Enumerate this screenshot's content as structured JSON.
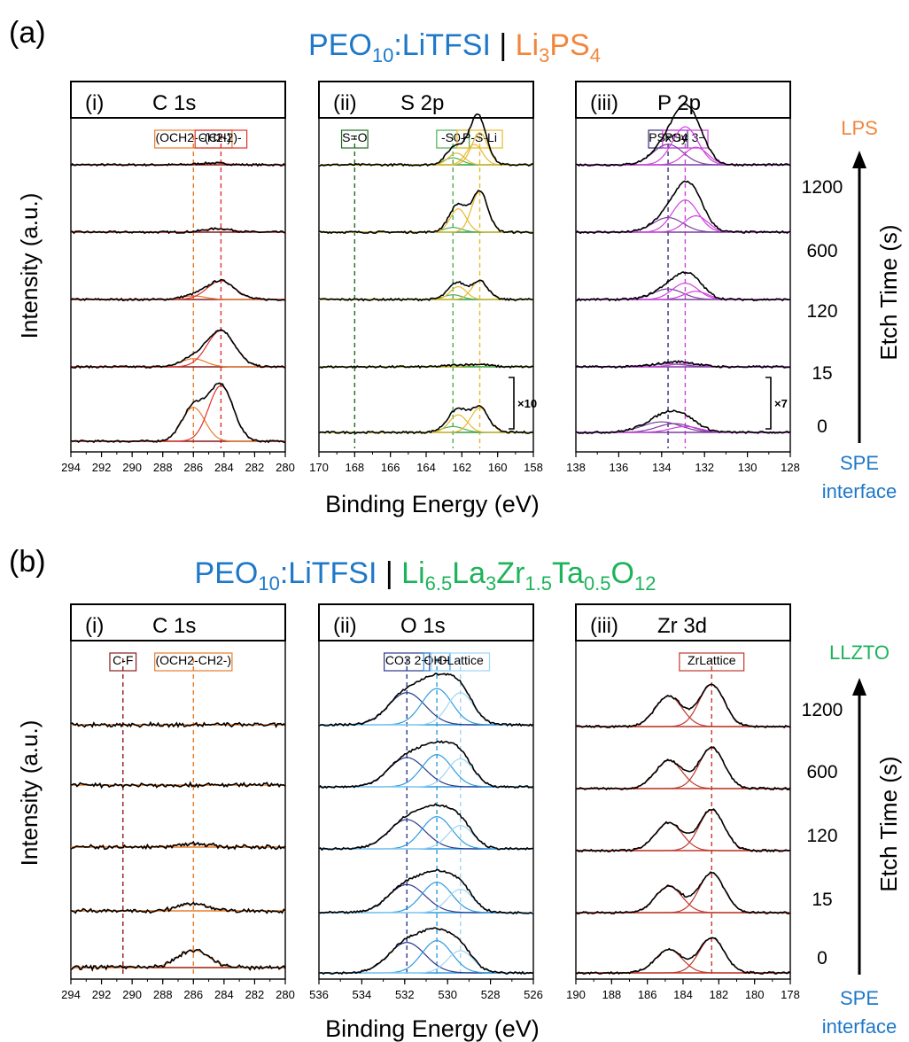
{
  "figure": {
    "panel_a": {
      "letter": "(a)",
      "title_left": "PEO",
      "title_left_sub": "10",
      "title_left_rest": ":LiTFSI",
      "title_sep": " | ",
      "title_right": [
        [
          "Li",
          ""
        ],
        [
          "3",
          "sub"
        ],
        [
          "PS",
          ""
        ],
        [
          "4",
          "sub"
        ]
      ],
      "etch_top": "LPS",
      "etch_bottom_1": "SPE",
      "etch_bottom_2": "interface"
    },
    "panel_b": {
      "letter": "(b)",
      "title_left": "PEO",
      "title_left_sub": "10",
      "title_left_rest": ":LiTFSI",
      "title_sep": " | ",
      "title_right": [
        [
          "Li",
          ""
        ],
        [
          "6.5",
          "sub"
        ],
        [
          "La",
          ""
        ],
        [
          "3",
          "sub"
        ],
        [
          "Zr",
          ""
        ],
        [
          "1.5",
          "sub"
        ],
        [
          "Ta",
          ""
        ],
        [
          "0.5",
          "sub"
        ],
        [
          "O",
          ""
        ],
        [
          "12",
          "sub"
        ]
      ],
      "etch_top": "LLZTO",
      "etch_bottom_1": "SPE",
      "etch_bottom_2": "interface"
    },
    "ylabel": "Intensity (a.u.)",
    "xlabel": "Binding Energy (eV)",
    "etch_axis_label": "Etch Time (s)",
    "etch_times": [
      "1200",
      "600",
      "120",
      "15",
      "0"
    ],
    "colors": {
      "blue_title": "#1E78C8",
      "orange_title": "#F0873C",
      "green_title": "#1DB35A",
      "co_dark_red": "#8B1A1A",
      "c1s_orange": "#E87C2A",
      "c1s_red": "#E0322A",
      "s2p_green": "#4CAF50",
      "s2p_yellow": "#E8B92E",
      "p2p_purple": "#7B3FA0",
      "p2p_magenta": "#D040E0",
      "o1s_navy": "#2C3A8C",
      "o1s_blue": "#2E9BE0",
      "o1s_light": "#9ED6F5",
      "zr_red": "#C0392B"
    }
  },
  "chart_data": [
    {
      "type": "line",
      "panel": "(a)(i)",
      "title": "C 1s",
      "title_roman": "(i)",
      "title_element": "C 1s",
      "xlim": [
        294,
        280
      ],
      "x_ticks": [
        "294",
        "292",
        "290",
        "288",
        "286",
        "284",
        "282",
        "280"
      ],
      "trace_color": "#8B1A1A",
      "annotations": [
        {
          "label": "(OCH2-CH2-)",
          "x": 286.0,
          "color": "#E87C2A"
        },
        {
          "label": "-(CH2)-",
          "x": 284.2,
          "color": "#E0322A"
        }
      ],
      "series": [
        {
          "etch": "1200",
          "peaks": [
            {
              "center": 284.8,
              "height": 0.03,
              "width": 0.9,
              "color": "#E0322A"
            }
          ]
        },
        {
          "etch": "600",
          "peaks": [
            {
              "center": 284.4,
              "height": 0.06,
              "width": 0.9,
              "color": "#E0322A"
            }
          ]
        },
        {
          "etch": "120",
          "peaks": [
            {
              "center": 286.0,
              "height": 0.06,
              "width": 0.8,
              "color": "#E87C2A"
            },
            {
              "center": 284.2,
              "height": 0.32,
              "width": 0.9,
              "color": "#E0322A"
            }
          ]
        },
        {
          "etch": "15",
          "peaks": [
            {
              "center": 286.0,
              "height": 0.14,
              "width": 0.8,
              "color": "#E87C2A"
            },
            {
              "center": 284.2,
              "height": 0.62,
              "width": 0.9,
              "color": "#E0322A"
            }
          ]
        },
        {
          "etch": "0",
          "peaks": [
            {
              "center": 286.0,
              "height": 0.58,
              "width": 0.75,
              "color": "#E87C2A"
            },
            {
              "center": 284.2,
              "height": 0.95,
              "width": 0.8,
              "color": "#E0322A"
            }
          ]
        }
      ]
    },
    {
      "type": "line",
      "panel": "(a)(ii)",
      "title": "S 2p",
      "title_roman": "(ii)",
      "title_element": "S 2p",
      "xlim": [
        170,
        158
      ],
      "x_ticks": [
        "170",
        "168",
        "166",
        "164",
        "162",
        "160",
        "158"
      ],
      "trace_color": "#3A9E3A",
      "annotations": [
        {
          "label": "S=O",
          "x": 168.0,
          "color": "#1E6B1E"
        },
        {
          "label": "-S0-",
          "x": 162.5,
          "color": "#4CAF50"
        },
        {
          "label": "P-S-Li",
          "x": 161.0,
          "color": "#E8B92E"
        }
      ],
      "multiplier": "×10",
      "series": [
        {
          "etch": "1200",
          "peaks": [
            {
              "center": 162.5,
              "height": 0.12,
              "width": 0.5,
              "color": "#4CAF50"
            },
            {
              "center": 161.3,
              "height": 0.35,
              "width": 0.45,
              "color": "#E8B92E"
            },
            {
              "center": 162.3,
              "height": 0.2,
              "width": 0.45,
              "color": "#E8B92E"
            },
            {
              "center": 161.0,
              "height": 0.55,
              "width": 0.45,
              "color": "#E8B92E"
            }
          ]
        },
        {
          "etch": "600",
          "peaks": [
            {
              "center": 162.5,
              "height": 0.08,
              "width": 0.5,
              "color": "#4CAF50"
            },
            {
              "center": 162.2,
              "height": 0.4,
              "width": 0.45,
              "color": "#E8B92E"
            },
            {
              "center": 161.0,
              "height": 0.7,
              "width": 0.45,
              "color": "#E8B92E"
            }
          ]
        },
        {
          "etch": "120",
          "peaks": [
            {
              "center": 162.5,
              "height": 0.08,
              "width": 0.5,
              "color": "#4CAF50"
            },
            {
              "center": 162.2,
              "height": 0.22,
              "width": 0.45,
              "color": "#E8B92E"
            },
            {
              "center": 161.0,
              "height": 0.32,
              "width": 0.45,
              "color": "#E8B92E"
            }
          ]
        },
        {
          "etch": "15",
          "peaks": [
            {
              "center": 162.3,
              "height": 0.03,
              "width": 0.6,
              "color": "#4CAF50"
            },
            {
              "center": 161.0,
              "height": 0.04,
              "width": 0.6,
              "color": "#E8B92E"
            }
          ]
        },
        {
          "etch": "0",
          "peaks": [
            {
              "center": 162.5,
              "height": 0.1,
              "width": 0.6,
              "color": "#4CAF50"
            },
            {
              "center": 162.2,
              "height": 0.3,
              "width": 0.5,
              "color": "#E8B92E"
            },
            {
              "center": 161.0,
              "height": 0.42,
              "width": 0.5,
              "color": "#E8B92E"
            }
          ]
        }
      ]
    },
    {
      "type": "line",
      "panel": "(a)(iii)",
      "title": "P 2p",
      "title_roman": "(iii)",
      "title_element": "P 2p",
      "xlim": [
        138,
        128
      ],
      "x_ticks": [
        "138",
        "136",
        "134",
        "132",
        "130",
        "128"
      ],
      "trace_color": "#7B3FA0",
      "annotations": [
        {
          "label": "PSxOy",
          "x": 133.7,
          "color": "#3A2A7A"
        },
        {
          "label": "PS4 3−",
          "x": 132.9,
          "color": "#D040E0"
        }
      ],
      "multiplier": "×7",
      "series": [
        {
          "etch": "1200",
          "peaks": [
            {
              "center": 133.7,
              "height": 0.35,
              "width": 0.7,
              "color": "#7B3FA0"
            },
            {
              "center": 132.9,
              "height": 0.65,
              "width": 0.6,
              "color": "#D040E0"
            },
            {
              "center": 132.4,
              "height": 0.3,
              "width": 0.55,
              "color": "#D040E0"
            }
          ]
        },
        {
          "etch": "600",
          "peaks": [
            {
              "center": 133.7,
              "height": 0.25,
              "width": 0.7,
              "color": "#7B3FA0"
            },
            {
              "center": 132.9,
              "height": 0.55,
              "width": 0.6,
              "color": "#D040E0"
            },
            {
              "center": 132.4,
              "height": 0.28,
              "width": 0.55,
              "color": "#D040E0"
            }
          ]
        },
        {
          "etch": "120",
          "peaks": [
            {
              "center": 133.7,
              "height": 0.18,
              "width": 0.7,
              "color": "#7B3FA0"
            },
            {
              "center": 132.9,
              "height": 0.28,
              "width": 0.6,
              "color": "#D040E0"
            },
            {
              "center": 132.4,
              "height": 0.14,
              "width": 0.55,
              "color": "#D040E0"
            }
          ]
        },
        {
          "etch": "15",
          "peaks": [
            {
              "center": 133.7,
              "height": 0.05,
              "width": 0.8,
              "color": "#7B3FA0"
            },
            {
              "center": 132.9,
              "height": 0.05,
              "width": 0.7,
              "color": "#D040E0"
            }
          ]
        },
        {
          "etch": "0",
          "peaks": [
            {
              "center": 134.0,
              "height": 0.18,
              "width": 0.9,
              "color": "#7B3FA0"
            },
            {
              "center": 133.4,
              "height": 0.15,
              "width": 0.8,
              "color": "#7B3FA0"
            },
            {
              "center": 132.9,
              "height": 0.1,
              "width": 0.7,
              "color": "#D040E0"
            }
          ]
        }
      ]
    },
    {
      "type": "line",
      "panel": "(b)(i)",
      "title": "C 1s",
      "title_roman": "(i)",
      "title_element": "C 1s",
      "xlim": [
        294,
        280
      ],
      "x_ticks": [
        "294",
        "292",
        "290",
        "288",
        "286",
        "284",
        "282",
        "280"
      ],
      "trace_color": "#E87C2A",
      "annotations": [
        {
          "label": "C-F",
          "x": 290.6,
          "color": "#8B1A1A"
        },
        {
          "label": "(OCH2-CH2-)",
          "x": 286.0,
          "color": "#E87C2A"
        }
      ],
      "series": [
        {
          "etch": "1200",
          "peaks": []
        },
        {
          "etch": "600",
          "peaks": []
        },
        {
          "etch": "120",
          "peaks": [
            {
              "center": 286.0,
              "height": 0.06,
              "width": 1.0,
              "color": "#E87C2A"
            }
          ]
        },
        {
          "etch": "15",
          "peaks": [
            {
              "center": 286.0,
              "height": 0.12,
              "width": 1.0,
              "color": "#E87C2A"
            }
          ]
        },
        {
          "etch": "0",
          "peaks": [
            {
              "center": 290.6,
              "height": 0.02,
              "width": 0.6,
              "color": "#8B1A1A"
            },
            {
              "center": 286.0,
              "height": 0.3,
              "width": 1.0,
              "color": "#E87C2A"
            }
          ]
        }
      ]
    },
    {
      "type": "line",
      "panel": "(b)(ii)",
      "title": "O 1s",
      "title_roman": "(ii)",
      "title_element": "O 1s",
      "xlim": [
        536,
        526
      ],
      "x_ticks": [
        "536",
        "534",
        "532",
        "530",
        "528",
        "526"
      ],
      "trace_color": "#2E9BE0",
      "annotations": [
        {
          "label": "CO3 2−",
          "x": 531.9,
          "color": "#2C3A8C"
        },
        {
          "label": "OH−",
          "x": 530.5,
          "color": "#2E9BE0"
        },
        {
          "label": "OLattice",
          "x": 529.4,
          "color": "#9ED6F5"
        }
      ],
      "series": [
        {
          "etch": "1200",
          "peaks": [
            {
              "center": 531.9,
              "height": 0.55,
              "width": 0.85,
              "color": "#2C3A8C"
            },
            {
              "center": 530.5,
              "height": 0.62,
              "width": 0.7,
              "color": "#2E9BE0"
            },
            {
              "center": 529.4,
              "height": 0.55,
              "width": 0.6,
              "color": "#9ED6F5"
            }
          ]
        },
        {
          "etch": "600",
          "peaks": [
            {
              "center": 531.9,
              "height": 0.5,
              "width": 0.85,
              "color": "#2C3A8C"
            },
            {
              "center": 530.5,
              "height": 0.55,
              "width": 0.7,
              "color": "#2E9BE0"
            },
            {
              "center": 529.4,
              "height": 0.48,
              "width": 0.6,
              "color": "#9ED6F5"
            }
          ]
        },
        {
          "etch": "120",
          "peaks": [
            {
              "center": 531.9,
              "height": 0.5,
              "width": 0.85,
              "color": "#2C3A8C"
            },
            {
              "center": 530.5,
              "height": 0.55,
              "width": 0.7,
              "color": "#2E9BE0"
            },
            {
              "center": 529.4,
              "height": 0.4,
              "width": 0.6,
              "color": "#9ED6F5"
            }
          ]
        },
        {
          "etch": "15",
          "peaks": [
            {
              "center": 531.9,
              "height": 0.48,
              "width": 0.85,
              "color": "#2C3A8C"
            },
            {
              "center": 530.5,
              "height": 0.52,
              "width": 0.7,
              "color": "#2E9BE0"
            },
            {
              "center": 529.4,
              "height": 0.4,
              "width": 0.6,
              "color": "#9ED6F5"
            }
          ]
        },
        {
          "etch": "0",
          "peaks": [
            {
              "center": 531.9,
              "height": 0.52,
              "width": 0.85,
              "color": "#2C3A8C"
            },
            {
              "center": 530.5,
              "height": 0.55,
              "width": 0.7,
              "color": "#2E9BE0"
            },
            {
              "center": 529.4,
              "height": 0.38,
              "width": 0.6,
              "color": "#9ED6F5"
            }
          ]
        }
      ]
    },
    {
      "type": "line",
      "panel": "(b)(iii)",
      "title": "Zr 3d",
      "title_roman": "(iii)",
      "title_element": "Zr 3d",
      "xlim": [
        190,
        178
      ],
      "x_ticks": [
        "190",
        "188",
        "186",
        "184",
        "182",
        "180",
        "178"
      ],
      "trace_color": "#C0392B",
      "annotations": [
        {
          "label": "ZrLattice",
          "x": 182.4,
          "color": "#C0392B"
        }
      ],
      "series": [
        {
          "etch": "1200",
          "peaks": [
            {
              "center": 184.8,
              "height": 0.52,
              "width": 0.75,
              "color": "#C0392B"
            },
            {
              "center": 182.4,
              "height": 0.72,
              "width": 0.7,
              "color": "#C0392B"
            }
          ]
        },
        {
          "etch": "600",
          "peaks": [
            {
              "center": 184.8,
              "height": 0.48,
              "width": 0.75,
              "color": "#C0392B"
            },
            {
              "center": 182.4,
              "height": 0.7,
              "width": 0.7,
              "color": "#C0392B"
            }
          ]
        },
        {
          "etch": "120",
          "peaks": [
            {
              "center": 184.8,
              "height": 0.48,
              "width": 0.75,
              "color": "#C0392B"
            },
            {
              "center": 182.4,
              "height": 0.7,
              "width": 0.7,
              "color": "#C0392B"
            }
          ]
        },
        {
          "etch": "15",
          "peaks": [
            {
              "center": 184.8,
              "height": 0.45,
              "width": 0.75,
              "color": "#C0392B"
            },
            {
              "center": 182.4,
              "height": 0.68,
              "width": 0.7,
              "color": "#C0392B"
            }
          ]
        },
        {
          "etch": "0",
          "peaks": [
            {
              "center": 184.8,
              "height": 0.4,
              "width": 0.75,
              "color": "#C0392B"
            },
            {
              "center": 182.4,
              "height": 0.6,
              "width": 0.7,
              "color": "#C0392B"
            }
          ]
        }
      ]
    }
  ]
}
